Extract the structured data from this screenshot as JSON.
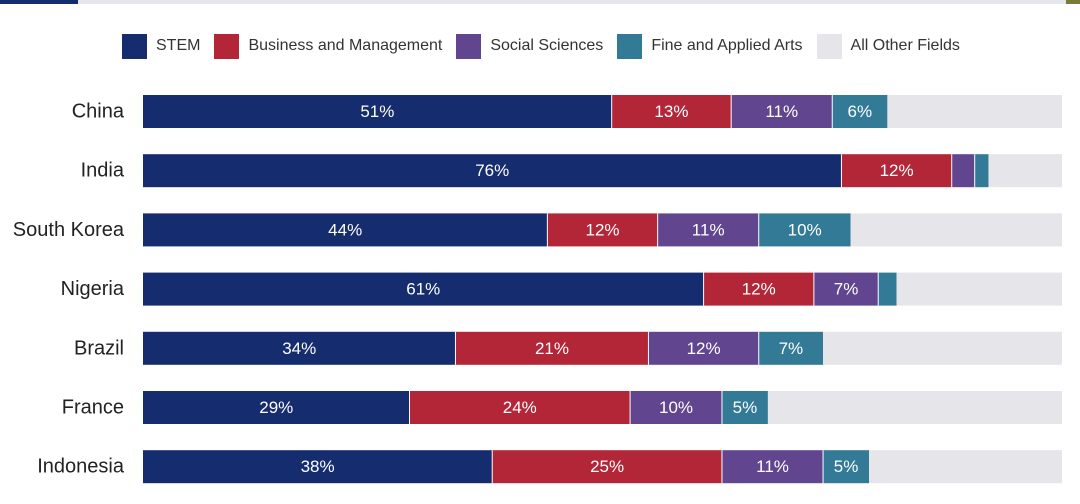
{
  "chart_data": {
    "type": "bar",
    "orientation": "horizontal",
    "stacked": true,
    "title": "",
    "xlabel": "",
    "ylabel": "",
    "xlim": [
      0,
      100
    ],
    "legend_position": "top",
    "grid": false,
    "categories": [
      "China",
      "India",
      "South Korea",
      "Nigeria",
      "Brazil",
      "France",
      "Indonesia"
    ],
    "series": [
      {
        "name": "STEM",
        "color": "#152c6e",
        "values": [
          51,
          76,
          44,
          61,
          34,
          29,
          38
        ],
        "labels": [
          "51%",
          "76%",
          "44%",
          "61%",
          "34%",
          "29%",
          "38%"
        ]
      },
      {
        "name": "Business and Management",
        "color": "#b22638",
        "values": [
          13,
          12,
          12,
          12,
          21,
          24,
          25
        ],
        "labels": [
          "13%",
          "12%",
          "12%",
          "12%",
          "21%",
          "24%",
          "25%"
        ]
      },
      {
        "name": "Social Sciences",
        "color": "#61468f",
        "values": [
          11,
          2.5,
          11,
          7,
          12,
          10,
          11
        ],
        "labels": [
          "11%",
          "",
          "11%",
          "7%",
          "12%",
          "10%",
          "11%"
        ]
      },
      {
        "name": "Fine and Applied Arts",
        "color": "#327a96",
        "values": [
          6,
          1.5,
          10,
          2,
          7,
          5,
          5
        ],
        "labels": [
          "6%",
          "",
          "10%",
          "",
          "7%",
          "5%",
          "5%"
        ]
      },
      {
        "name": "All Other Fields",
        "color": "#e5e5ea",
        "values": [
          19,
          8,
          23,
          18,
          26,
          32,
          21
        ],
        "labels": [
          "",
          "",
          "",
          "",
          "",
          "",
          ""
        ]
      }
    ]
  }
}
